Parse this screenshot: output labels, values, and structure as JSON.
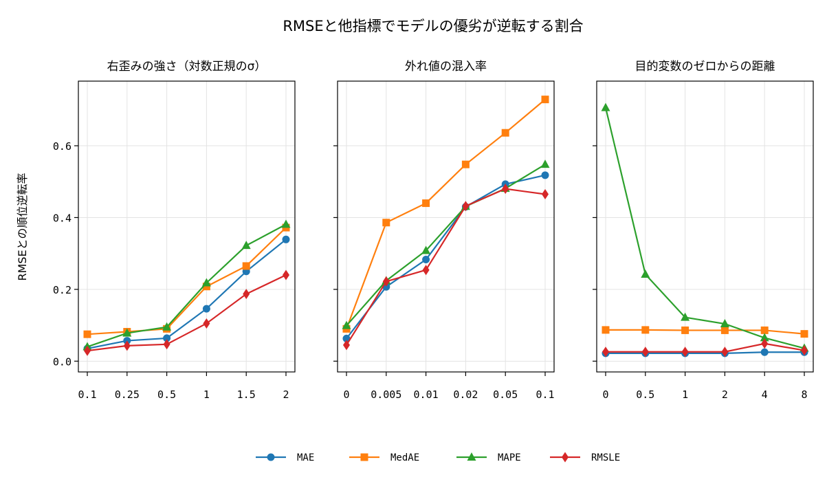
{
  "title": "RMSEと他指標でモデルの優劣が逆転する割合",
  "ylabel": "RMSEとの順位逆転率",
  "colors": {
    "MAE": "#1f77b4",
    "MedAE": "#ff7f0e",
    "MAPE": "#2ca02c",
    "RMSLE": "#d62728"
  },
  "legend": [
    {
      "name": "MAE",
      "marker": "circle"
    },
    {
      "name": "MedAE",
      "marker": "square"
    },
    {
      "name": "MAPE",
      "marker": "triangle"
    },
    {
      "name": "RMSLE",
      "marker": "diamond"
    }
  ],
  "y_ticks": [
    "0.0",
    "0.2",
    "0.4",
    "0.6"
  ],
  "chart_data": [
    {
      "type": "line",
      "title": "右歪みの強さ（対数正規のσ）",
      "categories": [
        "0.1",
        "0.25",
        "0.5",
        "1",
        "1.5",
        "2"
      ],
      "ylim": [
        -0.03,
        0.78
      ],
      "grid": true,
      "series": [
        {
          "name": "MAE",
          "values": [
            0.035,
            0.057,
            0.064,
            0.146,
            0.25,
            0.339
          ]
        },
        {
          "name": "MedAE",
          "values": [
            0.075,
            0.082,
            0.09,
            0.208,
            0.265,
            0.372
          ]
        },
        {
          "name": "MAPE",
          "values": [
            0.04,
            0.078,
            0.095,
            0.218,
            0.322,
            0.381
          ]
        },
        {
          "name": "RMSLE",
          "values": [
            0.029,
            0.043,
            0.047,
            0.105,
            0.187,
            0.24
          ]
        }
      ]
    },
    {
      "type": "line",
      "title": "外れ値の混入率",
      "categories": [
        "0",
        "0.005",
        "0.01",
        "0.02",
        "0.05",
        "0.1"
      ],
      "ylim": [
        -0.03,
        0.78
      ],
      "grid": true,
      "series": [
        {
          "name": "MAE",
          "values": [
            0.063,
            0.207,
            0.283,
            0.43,
            0.493,
            0.518
          ]
        },
        {
          "name": "MedAE",
          "values": [
            0.09,
            0.386,
            0.44,
            0.548,
            0.636,
            0.729
          ]
        },
        {
          "name": "MAPE",
          "values": [
            0.099,
            0.224,
            0.308,
            0.431,
            0.481,
            0.548
          ]
        },
        {
          "name": "RMSLE",
          "values": [
            0.045,
            0.222,
            0.254,
            0.432,
            0.48,
            0.465
          ]
        }
      ]
    },
    {
      "type": "line",
      "title": "目的変数のゼロからの距離",
      "categories": [
        "0",
        "0.5",
        "1",
        "2",
        "4",
        "8"
      ],
      "ylim": [
        -0.03,
        0.78
      ],
      "grid": true,
      "series": [
        {
          "name": "MAE",
          "values": [
            0.022,
            0.022,
            0.022,
            0.022,
            0.025,
            0.025
          ]
        },
        {
          "name": "MedAE",
          "values": [
            0.087,
            0.087,
            0.086,
            0.086,
            0.086,
            0.076
          ]
        },
        {
          "name": "MAPE",
          "values": [
            0.706,
            0.242,
            0.122,
            0.104,
            0.065,
            0.036
          ]
        },
        {
          "name": "RMSLE",
          "values": [
            0.026,
            0.026,
            0.026,
            0.026,
            0.049,
            0.03
          ]
        }
      ]
    }
  ]
}
